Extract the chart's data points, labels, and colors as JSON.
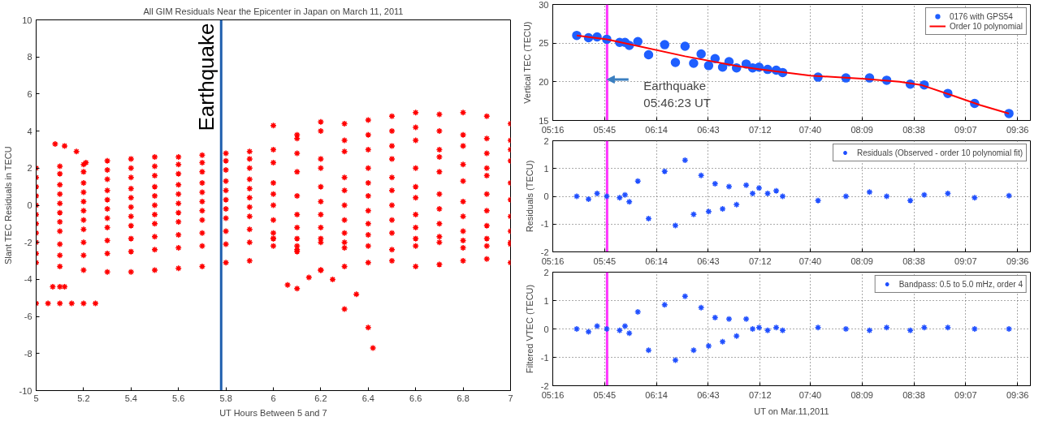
{
  "chart_data": [
    {
      "type": "scatter",
      "title": "All GIM Residuals Near the Epicenter in Japan on March 11, 2011",
      "xlabel": "UT Hours Between 5 and 7",
      "ylabel": "Slant TEC Residuals in TECU",
      "marker": "cross",
      "grid": false,
      "xlim": [
        5,
        7
      ],
      "ylim": [
        -10,
        10
      ],
      "xticks": [
        5,
        5.2,
        5.4,
        5.6,
        5.8,
        6,
        6.2,
        6.4,
        6.6,
        6.8,
        7
      ],
      "yticks": [
        -10,
        -8,
        -6,
        -4,
        -2,
        0,
        2,
        4,
        6,
        8,
        10
      ],
      "x": [
        5.0,
        5.1,
        5.2,
        5.3,
        5.4,
        5.5,
        5.6,
        5.7,
        5.8,
        5.9,
        6.0,
        6.1,
        6.2,
        6.3,
        6.4,
        6.5,
        6.6,
        6.7,
        6.8,
        6.9,
        7.0
      ],
      "ref_lines": [
        {
          "axis": "x",
          "value": 5.78,
          "label": "Earthquake",
          "color": "#1f5fae"
        }
      ],
      "series": [
        {
          "color": "#ff0000",
          "values": [
            2.0,
            2.1,
            2.2,
            2.4,
            2.5,
            2.6,
            2.6,
            2.7,
            2.8,
            2.9,
            3.0,
            3.6,
            4.5,
            4.4,
            4.6,
            4.8,
            5.0,
            4.9,
            5.0,
            4.8,
            4.4
          ]
        },
        {
          "color": "#ff0000",
          "values": [
            1.5,
            1.7,
            1.8,
            1.9,
            2.0,
            2.1,
            2.2,
            2.3,
            2.4,
            2.5,
            4.3,
            3.8,
            4.0,
            3.5,
            3.8,
            4.0,
            4.2,
            4.0,
            3.8,
            3.6,
            3.5
          ]
        },
        {
          "color": "#ff0000",
          "values": [
            1.0,
            1.1,
            1.2,
            1.4,
            1.5,
            1.6,
            1.7,
            1.8,
            1.9,
            2.0,
            2.3,
            2.8,
            2.5,
            2.9,
            3.0,
            3.2,
            3.5,
            3.0,
            3.2,
            2.8,
            3.0
          ]
        },
        {
          "color": "#ff0000",
          "values": [
            0.5,
            0.6,
            0.7,
            0.8,
            0.9,
            1.0,
            1.1,
            1.2,
            1.3,
            1.4,
            1.2,
            1.8,
            2.0,
            1.5,
            2.0,
            2.5,
            2.0,
            2.6,
            2.2,
            2.0,
            2.4
          ]
        },
        {
          "color": "#ff0000",
          "values": [
            0.0,
            0.1,
            0.2,
            0.3,
            0.4,
            0.5,
            0.6,
            0.7,
            0.8,
            0.9,
            0.6,
            0.5,
            1.0,
            0.8,
            1.2,
            1.5,
            1.0,
            1.8,
            1.3,
            1.6,
            1.2
          ]
        },
        {
          "color": "#ff0000",
          "values": [
            -0.5,
            -0.4,
            -0.3,
            -0.2,
            -0.1,
            0.0,
            0.1,
            0.2,
            0.3,
            0.4,
            0.0,
            -0.5,
            0.2,
            0.0,
            0.5,
            0.8,
            0.4,
            0.6,
            0.2,
            0.6,
            0.3
          ]
        },
        {
          "color": "#ff0000",
          "values": [
            -1.0,
            -0.9,
            -0.8,
            -0.7,
            -0.6,
            -0.5,
            -0.4,
            -0.3,
            -0.2,
            -0.1,
            -0.8,
            -1.2,
            -0.5,
            -0.8,
            -0.3,
            0.0,
            -0.5,
            -0.2,
            -0.6,
            -0.3,
            -0.6
          ]
        },
        {
          "color": "#ff0000",
          "values": [
            -1.5,
            -1.4,
            -1.3,
            -1.2,
            -1.1,
            -1.0,
            -0.9,
            -0.8,
            -0.7,
            -0.6,
            -1.5,
            -1.8,
            -1.2,
            -1.5,
            -1.0,
            -0.8,
            -1.2,
            -1.0,
            -1.4,
            -1.1,
            -1.4
          ]
        },
        {
          "color": "#ff0000",
          "values": [
            -2.0,
            -2.1,
            -2.0,
            -1.9,
            -1.8,
            -1.7,
            -1.6,
            -1.5,
            -1.4,
            -1.3,
            -1.8,
            -2.2,
            -1.8,
            -2.0,
            -1.6,
            -1.5,
            -1.8,
            -1.7,
            -1.9,
            -1.8,
            -2.0
          ]
        },
        {
          "color": "#ff0000",
          "values": [
            -2.6,
            -2.7,
            -2.7,
            -2.6,
            -2.5,
            -2.4,
            -2.3,
            -2.2,
            -2.1,
            -2.0,
            -1.8,
            -2.5,
            -2.0,
            -2.3,
            -2.2,
            -2.4,
            -2.2,
            -2.0,
            -2.3,
            -2.2,
            -2.1
          ]
        },
        {
          "color": "#ff0000",
          "values": [
            -3.1,
            -3.3,
            -3.5,
            -3.6,
            -3.6,
            -3.5,
            -3.4,
            -3.3,
            -3.1,
            -3.0,
            -2.2,
            -2.4,
            -3.5,
            -3.3,
            -3.1,
            -3.0,
            -3.3,
            -3.2,
            -3.0,
            -2.9,
            -3.1
          ]
        },
        {
          "color": "#ff0000",
          "x": [
            6.06,
            6.1,
            6.15,
            6.2,
            6.25,
            6.3,
            6.35,
            6.4,
            6.42
          ],
          "values": [
            -4.3,
            -4.5,
            -3.9,
            -3.5,
            -4.0,
            -5.6,
            -4.8,
            -6.6,
            -7.7
          ]
        },
        {
          "color": "#ff0000",
          "x": [
            5.08,
            5.12,
            5.17,
            5.21
          ],
          "values": [
            3.3,
            3.2,
            2.9,
            2.3
          ]
        },
        {
          "color": "#ff0000",
          "x": [
            5.0,
            5.05,
            5.1,
            5.15,
            5.2,
            5.25
          ],
          "values": [
            -5.3,
            -5.3,
            -5.3,
            -5.3,
            -5.3,
            -5.3
          ]
        },
        {
          "color": "#ff0000",
          "x": [
            5.07,
            5.1,
            5.12
          ],
          "values": [
            -4.4,
            -4.4,
            -4.4
          ]
        }
      ]
    },
    {
      "type": "scatter",
      "ylabel": "Vertical TEC (TECU)",
      "marker": "circle",
      "grid": true,
      "legend": "top right",
      "xlim": [
        5.2667,
        9.72
      ],
      "ylim": [
        15,
        30
      ],
      "yticks": [
        15,
        20,
        25,
        30
      ],
      "xticks": [
        {
          "value": 5.2667,
          "label": "05:16"
        },
        {
          "value": 5.75,
          "label": "05:45"
        },
        {
          "value": 6.2333,
          "label": "06:14"
        },
        {
          "value": 6.7167,
          "label": "06:43"
        },
        {
          "value": 7.2,
          "label": "07:12"
        },
        {
          "value": 7.6667,
          "label": "07:40"
        },
        {
          "value": 8.15,
          "label": "08:09"
        },
        {
          "value": 8.6333,
          "label": "08:38"
        },
        {
          "value": 9.1167,
          "label": "09:07"
        },
        {
          "value": 9.6,
          "label": "09:36"
        }
      ],
      "x": [
        5.49,
        5.6,
        5.68,
        5.77,
        5.89,
        5.94,
        5.98,
        6.06,
        6.16,
        6.31,
        6.41,
        6.5,
        6.58,
        6.65,
        6.72,
        6.78,
        6.85,
        6.91,
        6.98,
        7.07,
        7.13,
        7.19,
        7.27,
        7.35,
        7.41,
        7.74,
        8.0,
        8.22,
        8.38,
        8.6,
        8.73,
        8.95,
        9.2,
        9.52
      ],
      "ref_lines": [
        {
          "axis": "x",
          "value": 5.773,
          "color": "#ff33ff"
        }
      ],
      "annotations": [
        {
          "text": "Earthquake\n05:46:23 UT",
          "x": 5.773,
          "y": 20.3
        }
      ],
      "series": [
        {
          "name": "0176 with GPS54",
          "color": "#1f5fff",
          "values": [
            26.0,
            25.7,
            25.8,
            25.5,
            25.1,
            25.1,
            24.7,
            25.2,
            23.5,
            24.8,
            22.5,
            24.6,
            22.4,
            23.6,
            22.1,
            23.0,
            21.9,
            22.6,
            21.8,
            22.3,
            21.8,
            21.9,
            21.6,
            21.5,
            21.2,
            20.6,
            20.5,
            20.5,
            20.2,
            19.7,
            19.6,
            18.5,
            17.2,
            15.9
          ]
        },
        {
          "name": "Order 10 polynomial",
          "type": "line",
          "marker": "none",
          "line_style": "solid",
          "color": "#ff0000",
          "x": [
            5.49,
            5.77,
            6.0,
            6.5,
            7.0,
            7.2,
            7.67,
            8.15,
            8.5,
            8.7,
            9.0,
            9.25,
            9.52
          ],
          "values": [
            26.0,
            25.5,
            24.8,
            23.3,
            22.0,
            21.6,
            20.8,
            20.4,
            20.0,
            19.6,
            18.2,
            17.0,
            15.9
          ]
        }
      ]
    },
    {
      "type": "scatter",
      "ylabel": "Residuals (TECU)",
      "marker": "cross",
      "grid": true,
      "legend": "top right",
      "xlim": [
        5.2667,
        9.72
      ],
      "ylim": [
        -2,
        2
      ],
      "yticks": [
        -2,
        -1,
        0,
        1,
        2
      ],
      "xticks": [
        {
          "value": 5.2667,
          "label": "05:16"
        },
        {
          "value": 5.75,
          "label": "05:45"
        },
        {
          "value": 6.2333,
          "label": "06:14"
        },
        {
          "value": 6.7167,
          "label": "06:43"
        },
        {
          "value": 7.2,
          "label": "07:12"
        },
        {
          "value": 7.6667,
          "label": "07:40"
        },
        {
          "value": 8.15,
          "label": "08:09"
        },
        {
          "value": 8.6333,
          "label": "08:38"
        },
        {
          "value": 9.1167,
          "label": "09:07"
        },
        {
          "value": 9.6,
          "label": "09:36"
        }
      ],
      "x": [
        5.49,
        5.6,
        5.68,
        5.77,
        5.89,
        5.94,
        5.98,
        6.06,
        6.16,
        6.31,
        6.41,
        6.5,
        6.58,
        6.65,
        6.72,
        6.78,
        6.85,
        6.91,
        6.98,
        7.07,
        7.13,
        7.19,
        7.27,
        7.35,
        7.41,
        7.74,
        8.0,
        8.22,
        8.38,
        8.6,
        8.73,
        8.95,
        9.2,
        9.52
      ],
      "ref_lines": [
        {
          "axis": "x",
          "value": 5.773,
          "color": "#ff33ff"
        }
      ],
      "series": [
        {
          "name": "Residuals (Observed - order 10 polynomial fit)",
          "color": "#1f4fff",
          "values": [
            0.0,
            -0.1,
            0.1,
            0.0,
            -0.05,
            0.05,
            -0.2,
            0.55,
            -0.8,
            0.9,
            -1.05,
            1.3,
            -0.65,
            0.75,
            -0.55,
            0.45,
            -0.45,
            0.35,
            -0.3,
            0.4,
            0.1,
            0.3,
            0.1,
            0.2,
            0.0,
            -0.15,
            0.0,
            0.15,
            0.0,
            -0.15,
            0.05,
            0.1,
            -0.05,
            0.02
          ]
        }
      ]
    },
    {
      "type": "scatter",
      "xlabel": "UT on Mar.11,2011",
      "ylabel": "Filtered VTEC (TECU)",
      "marker": "cross",
      "grid": true,
      "legend": "top right",
      "xlim": [
        5.2667,
        9.72
      ],
      "ylim": [
        -2,
        2
      ],
      "yticks": [
        -2,
        -1,
        0,
        1,
        2
      ],
      "xticks": [
        {
          "value": 5.2667,
          "label": "05:16"
        },
        {
          "value": 5.75,
          "label": "05:45"
        },
        {
          "value": 6.2333,
          "label": "06:14"
        },
        {
          "value": 6.7167,
          "label": "06:43"
        },
        {
          "value": 7.2,
          "label": "07:12"
        },
        {
          "value": 7.6667,
          "label": "07:40"
        },
        {
          "value": 8.15,
          "label": "08:09"
        },
        {
          "value": 8.6333,
          "label": "08:38"
        },
        {
          "value": 9.1167,
          "label": "09:07"
        },
        {
          "value": 9.6,
          "label": "09:36"
        }
      ],
      "x": [
        5.49,
        5.6,
        5.68,
        5.77,
        5.89,
        5.94,
        5.98,
        6.06,
        6.16,
        6.31,
        6.41,
        6.5,
        6.58,
        6.65,
        6.72,
        6.78,
        6.85,
        6.91,
        6.98,
        7.07,
        7.13,
        7.19,
        7.27,
        7.35,
        7.41,
        7.74,
        8.0,
        8.22,
        8.38,
        8.6,
        8.73,
        8.95,
        9.2,
        9.52
      ],
      "ref_lines": [
        {
          "axis": "x",
          "value": 5.773,
          "color": "#ff33ff"
        }
      ],
      "series": [
        {
          "name": "Bandpass: 0.5 to 5.0 mHz, order 4",
          "color": "#1f4fff",
          "values": [
            0.0,
            -0.1,
            0.1,
            0.0,
            -0.05,
            0.1,
            -0.15,
            0.6,
            -0.75,
            0.85,
            -1.1,
            1.15,
            -0.75,
            0.75,
            -0.6,
            0.4,
            -0.45,
            0.35,
            -0.25,
            0.35,
            0.0,
            0.05,
            -0.05,
            0.05,
            -0.05,
            0.05,
            0.0,
            -0.05,
            0.05,
            -0.05,
            0.05,
            0.05,
            0.0,
            0.0
          ]
        }
      ]
    }
  ]
}
